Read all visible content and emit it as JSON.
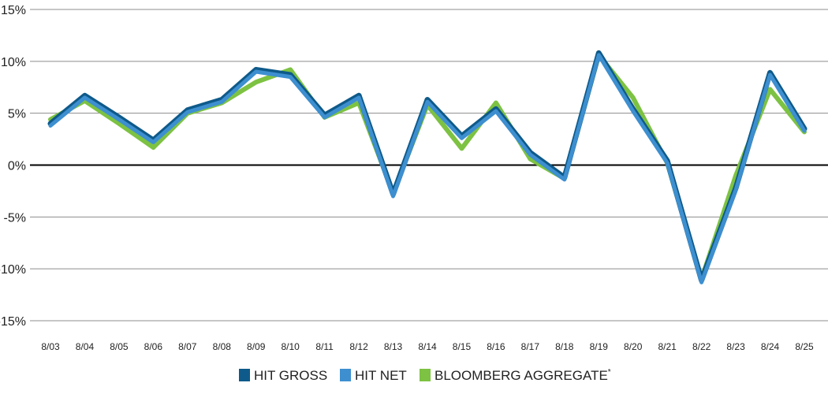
{
  "chart_data": {
    "type": "line",
    "categories": [
      "8/03",
      "8/04",
      "8/05",
      "8/06",
      "8/07",
      "8/08",
      "8/09",
      "8/10",
      "8/11",
      "8/12",
      "8/13",
      "8/14",
      "8/15",
      "8/16",
      "8/17",
      "8/18",
      "8/19",
      "8/20",
      "8/21",
      "8/22",
      "8/23",
      "8/24",
      "8/25"
    ],
    "y_tick_labels": [
      "15%",
      "10%",
      "5%",
      "0%",
      "-5%",
      "-10%",
      "-15%"
    ],
    "y_tick_values": [
      15,
      10,
      5,
      0,
      -5,
      -10,
      -15
    ],
    "ylim": [
      -15,
      15
    ],
    "grid": true,
    "legend_position": "bottom",
    "series": [
      {
        "name": "BLOOMBERG AGGREGATE",
        "name_suffix": "*",
        "color": "#7dc242",
        "values": [
          4.4,
          6.2,
          4.0,
          1.7,
          5.0,
          6.0,
          8.0,
          9.2,
          4.6,
          6.0,
          -2.7,
          5.8,
          1.6,
          6.0,
          0.6,
          -1.3,
          10.6,
          6.5,
          0.2,
          -11.0,
          -1.0,
          7.3,
          3.2
        ]
      },
      {
        "name": "HIT GROSS",
        "color": "#0e5a8a",
        "values": [
          4.0,
          6.7,
          4.6,
          2.4,
          5.3,
          6.3,
          9.2,
          8.7,
          4.8,
          6.7,
          -2.8,
          6.3,
          2.8,
          5.4,
          1.2,
          -1.2,
          10.8,
          5.4,
          0.4,
          -11.1,
          -2.2,
          8.9,
          3.5
        ]
      },
      {
        "name": "HIT NET",
        "color": "#3d8fd0",
        "values": [
          3.8,
          6.5,
          4.4,
          2.2,
          5.1,
          6.1,
          9.0,
          8.5,
          4.6,
          6.5,
          -3.0,
          6.1,
          2.6,
          5.2,
          1.0,
          -1.4,
          10.6,
          5.2,
          0.2,
          -11.3,
          -2.4,
          8.7,
          3.3
        ]
      }
    ]
  },
  "legend_order": [
    1,
    2,
    0
  ]
}
